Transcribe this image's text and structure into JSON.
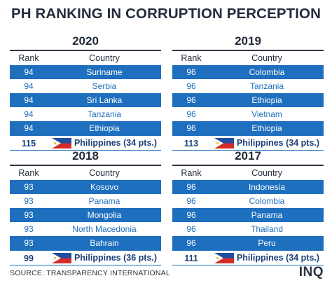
{
  "title": "PH RANKING IN CORRUPTION PERCEPTION",
  "source": "SOURCE: TRANSPARENCY INTERNATIONAL",
  "logo": "INQ",
  "colors": {
    "row_dark": "#1e6fbe",
    "row_light": "#ffffff",
    "text_dark": "#232c3a"
  },
  "icons": {
    "flag": "philippine-flag-icon"
  },
  "chart_data": [
    {
      "type": "table",
      "year": "2020",
      "headers": [
        "Rank",
        "Country"
      ],
      "rows": [
        {
          "rank": "94",
          "country": "Suriname"
        },
        {
          "rank": "94",
          "country": "Serbia"
        },
        {
          "rank": "94",
          "country": "Sri Lanka"
        },
        {
          "rank": "94",
          "country": "Tanzania"
        },
        {
          "rank": "94",
          "country": "Ethiopia"
        }
      ],
      "ph": {
        "rank": "115",
        "country": "Philippines (34 pts.)"
      }
    },
    {
      "type": "table",
      "year": "2019",
      "headers": [
        "Rank",
        "Country"
      ],
      "rows": [
        {
          "rank": "96",
          "country": "Colombia"
        },
        {
          "rank": "96",
          "country": "Tanzania"
        },
        {
          "rank": "96",
          "country": "Ethiopia"
        },
        {
          "rank": "96",
          "country": "Vietnam"
        },
        {
          "rank": "96",
          "country": "Ethiopia"
        }
      ],
      "ph": {
        "rank": "113",
        "country": "Philippines (34 pts.)"
      }
    },
    {
      "type": "table",
      "year": "2018",
      "headers": [
        "Rank",
        "Country"
      ],
      "rows": [
        {
          "rank": "93",
          "country": "Kosovo"
        },
        {
          "rank": "93",
          "country": "Panama"
        },
        {
          "rank": "93",
          "country": "Mongolia"
        },
        {
          "rank": "93",
          "country": "North Macedonia"
        },
        {
          "rank": "93",
          "country": "Bahrain"
        }
      ],
      "ph": {
        "rank": "99",
        "country": "Philippines (36 pts.)"
      }
    },
    {
      "type": "table",
      "year": "2017",
      "headers": [
        "Rank",
        "Country"
      ],
      "rows": [
        {
          "rank": "96",
          "country": "Indonesia"
        },
        {
          "rank": "96",
          "country": "Colombia"
        },
        {
          "rank": "96",
          "country": "Panama"
        },
        {
          "rank": "96",
          "country": "Thailand"
        },
        {
          "rank": "96",
          "country": "Peru"
        }
      ],
      "ph": {
        "rank": "111",
        "country": "Philippines (34 pts.)"
      }
    }
  ]
}
